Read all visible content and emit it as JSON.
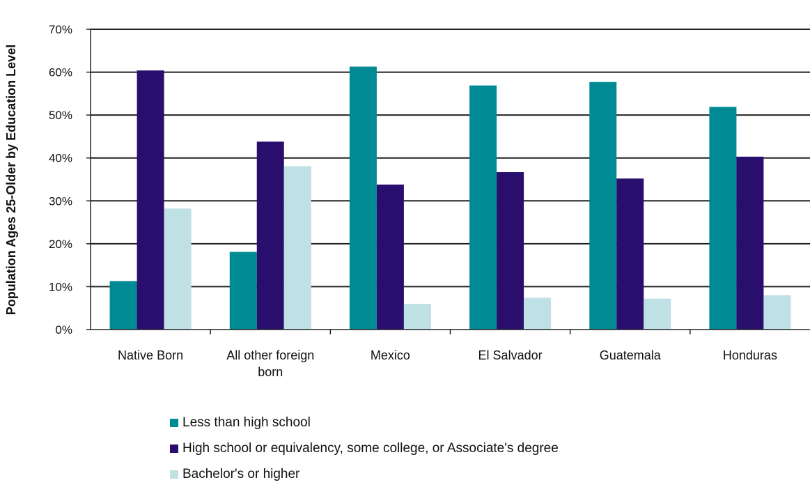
{
  "chart_data": {
    "type": "bar",
    "ylabel": "Population Ages 25-Older by Education Level",
    "xlabel": "",
    "title": "",
    "ylim": [
      0,
      70
    ],
    "yticks": [
      "0%",
      "10%",
      "20%",
      "30%",
      "40%",
      "50%",
      "60%",
      "70%"
    ],
    "categories": [
      [
        "Native Born"
      ],
      [
        "All other foreign",
        "born"
      ],
      [
        "Mexico"
      ],
      [
        "El Salvador"
      ],
      [
        "Guatemala"
      ],
      [
        "Honduras"
      ]
    ],
    "grid": true,
    "legend_position": "bottom",
    "series": [
      {
        "name": "Less than high school",
        "color": "#008b94",
        "values": [
          11.3,
          18.1,
          61.3,
          56.9,
          57.7,
          51.9
        ]
      },
      {
        "name": "High school or equivalency, some college, or Associate's degree",
        "color": "#2a0e6e",
        "values": [
          60.4,
          43.8,
          33.8,
          36.7,
          35.2,
          40.3
        ]
      },
      {
        "name": "Bachelor's or higher",
        "color": "#bfe0e4",
        "values": [
          28.2,
          38.1,
          6.0,
          7.4,
          7.2,
          8.0
        ]
      }
    ]
  }
}
